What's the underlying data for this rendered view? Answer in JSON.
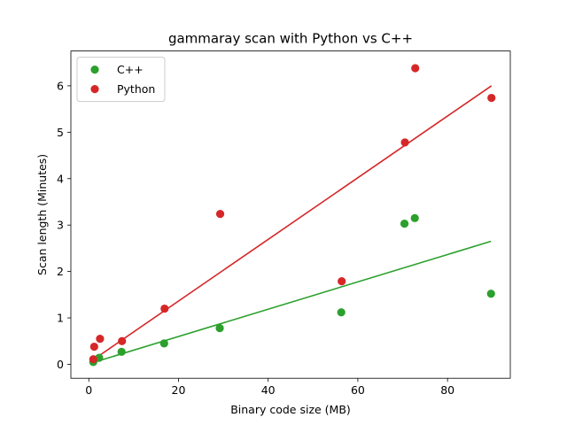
{
  "chart_data": {
    "type": "scatter",
    "title": "gammaray scan with Python vs C++",
    "xlabel": "Binary code size (MB)",
    "ylabel": "Scan length (Minutes)",
    "xlim": [
      -4,
      94
    ],
    "ylim": [
      -0.3,
      6.75
    ],
    "xticks": [
      0,
      20,
      40,
      60,
      80
    ],
    "yticks": [
      0,
      1,
      2,
      3,
      4,
      5,
      6
    ],
    "grid": false,
    "legend_position": "upper-left",
    "series": [
      {
        "name": "C++",
        "color": "#2ca02c",
        "points": [
          {
            "x": 1.0,
            "y": 0.05
          },
          {
            "x": 1.1,
            "y": 0.1
          },
          {
            "x": 2.3,
            "y": 0.14
          },
          {
            "x": 7.3,
            "y": 0.27
          },
          {
            "x": 16.8,
            "y": 0.45
          },
          {
            "x": 29.2,
            "y": 0.78
          },
          {
            "x": 56.3,
            "y": 1.12
          },
          {
            "x": 70.4,
            "y": 3.03
          },
          {
            "x": 72.7,
            "y": 3.15
          },
          {
            "x": 89.7,
            "y": 1.52
          }
        ],
        "fit": {
          "x": [
            1.0,
            89.7
          ],
          "y": [
            0.04,
            2.65
          ]
        }
      },
      {
        "name": "Python",
        "color": "#d62728",
        "points": [
          {
            "x": 1.0,
            "y": 0.11
          },
          {
            "x": 1.2,
            "y": 0.38
          },
          {
            "x": 2.5,
            "y": 0.55
          },
          {
            "x": 7.4,
            "y": 0.5
          },
          {
            "x": 16.9,
            "y": 1.2
          },
          {
            "x": 29.3,
            "y": 3.24
          },
          {
            "x": 56.4,
            "y": 1.79
          },
          {
            "x": 70.5,
            "y": 4.78
          },
          {
            "x": 72.8,
            "y": 6.38
          },
          {
            "x": 89.8,
            "y": 5.74
          }
        ],
        "fit": {
          "x": [
            1.0,
            89.8
          ],
          "y": [
            0.1,
            6.0
          ]
        }
      }
    ]
  }
}
